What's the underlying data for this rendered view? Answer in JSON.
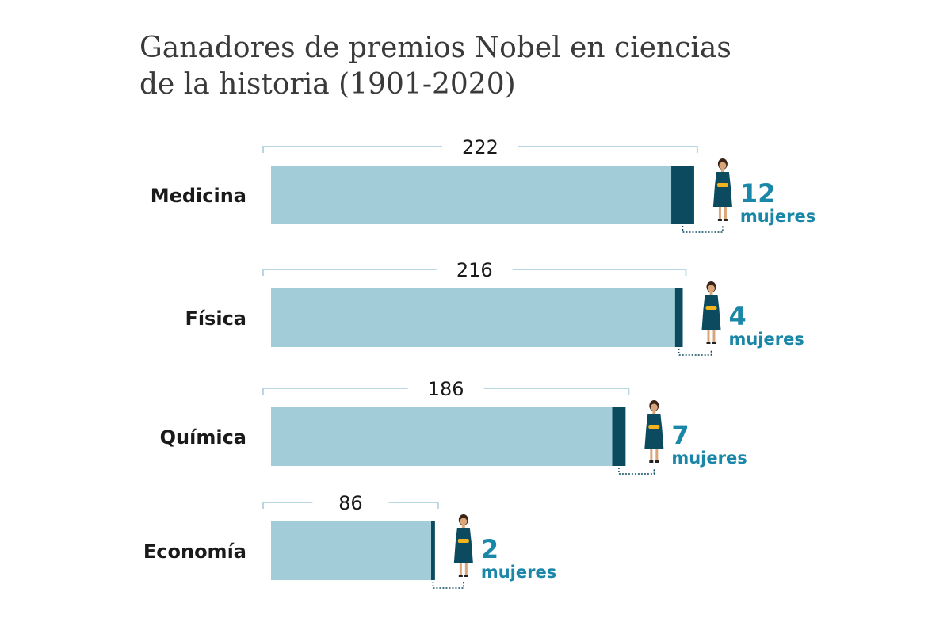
{
  "chart_data": {
    "type": "bar",
    "title": "Ganadores de premios Nobel en ciencias de la historia (1901-2020)",
    "title_lines": [
      "Ganadores de premios Nobel en ciencias",
      "de la historia (1901-2020)"
    ],
    "categories": [
      "Medicina",
      "Física",
      "Química",
      "Economía"
    ],
    "series": [
      {
        "values": [
          222,
          216,
          186,
          86
        ]
      },
      {
        "values": [
          12,
          4,
          7,
          2
        ]
      }
    ],
    "women_unit_label": "mujeres",
    "stacked": true,
    "grid": false,
    "colors": {
      "total": "#a3ccd9",
      "women": "#0c4a60",
      "women_label": "#1b87a8",
      "bracket": "#b9d7e2",
      "text": "#1a1a1a",
      "title": "#3a3a3a"
    },
    "icons": [
      "woman-with-medal-icon"
    ]
  }
}
